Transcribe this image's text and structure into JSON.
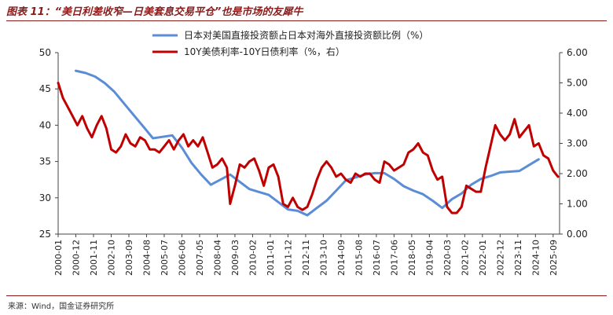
{
  "figure_title": "图表 11：“美日利差收窄—日美套息交易平仓”也是市场的友犀牛",
  "source": "来源：Wind，国金证券研究所",
  "chart_data": {
    "type": "line",
    "title": "",
    "series": [
      {
        "name": "日本对美国直接投资额占日本对海外直接投资额比例（%）",
        "axis": "left",
        "color": "#5B8DD6",
        "points": [
          [
            "2000-12",
            47.5
          ],
          [
            "2001-06",
            47.2
          ],
          [
            "2001-12",
            46.7
          ],
          [
            "2002-06",
            45.8
          ],
          [
            "2002-12",
            44.6
          ],
          [
            "2003-06",
            43.0
          ],
          [
            "2003-12",
            41.4
          ],
          [
            "2004-06",
            39.8
          ],
          [
            "2004-12",
            38.2
          ],
          [
            "2005-06",
            38.4
          ],
          [
            "2005-12",
            38.6
          ],
          [
            "2006-06",
            36.9
          ],
          [
            "2006-12",
            34.8
          ],
          [
            "2007-06",
            33.2
          ],
          [
            "2007-12",
            31.8
          ],
          [
            "2008-06",
            32.5
          ],
          [
            "2008-12",
            33.2
          ],
          [
            "2009-06",
            32.2
          ],
          [
            "2009-12",
            31.2
          ],
          [
            "2010-06",
            30.8
          ],
          [
            "2010-12",
            30.4
          ],
          [
            "2011-06",
            29.4
          ],
          [
            "2011-12",
            28.4
          ],
          [
            "2012-06",
            28.2
          ],
          [
            "2012-12",
            27.6
          ],
          [
            "2013-06",
            28.6
          ],
          [
            "2013-12",
            29.6
          ],
          [
            "2014-06",
            31.0
          ],
          [
            "2014-12",
            32.4
          ],
          [
            "2015-06",
            32.8
          ],
          [
            "2015-12",
            33.2
          ],
          [
            "2016-06",
            33.4
          ],
          [
            "2016-12",
            33.4
          ],
          [
            "2017-06",
            32.6
          ],
          [
            "2017-12",
            31.6
          ],
          [
            "2018-06",
            31.0
          ],
          [
            "2018-12",
            30.5
          ],
          [
            "2019-06",
            29.6
          ],
          [
            "2019-12",
            28.6
          ],
          [
            "2020-06",
            29.8
          ],
          [
            "2020-12",
            30.6
          ],
          [
            "2021-06",
            31.8
          ],
          [
            "2021-12",
            32.6
          ],
          [
            "2022-06",
            33.0
          ],
          [
            "2022-12",
            33.5
          ],
          [
            "2023-06",
            33.6
          ],
          [
            "2023-12",
            33.7
          ],
          [
            "2024-06",
            34.5
          ],
          [
            "2024-12",
            35.3
          ]
        ]
      },
      {
        "name": "10Y美债利率-10Y日债利率（%，右）",
        "axis": "right",
        "color": "#C00000",
        "points": [
          [
            "2000-01",
            5.0
          ],
          [
            "2000-04",
            4.5
          ],
          [
            "2000-07",
            4.2
          ],
          [
            "2000-10",
            3.9
          ],
          [
            "2001-01",
            3.6
          ],
          [
            "2001-04",
            3.9
          ],
          [
            "2001-07",
            3.5
          ],
          [
            "2001-10",
            3.2
          ],
          [
            "2002-01",
            3.6
          ],
          [
            "2002-04",
            3.9
          ],
          [
            "2002-07",
            3.5
          ],
          [
            "2002-10",
            2.8
          ],
          [
            "2003-01",
            2.7
          ],
          [
            "2003-04",
            2.9
          ],
          [
            "2003-07",
            3.3
          ],
          [
            "2003-10",
            3.0
          ],
          [
            "2004-01",
            2.9
          ],
          [
            "2004-04",
            3.2
          ],
          [
            "2004-07",
            3.1
          ],
          [
            "2004-10",
            2.8
          ],
          [
            "2005-01",
            2.8
          ],
          [
            "2005-04",
            2.7
          ],
          [
            "2005-07",
            2.9
          ],
          [
            "2005-10",
            3.1
          ],
          [
            "2006-01",
            2.8
          ],
          [
            "2006-04",
            3.1
          ],
          [
            "2006-07",
            3.3
          ],
          [
            "2006-10",
            2.9
          ],
          [
            "2007-01",
            3.1
          ],
          [
            "2007-04",
            2.9
          ],
          [
            "2007-07",
            3.2
          ],
          [
            "2007-10",
            2.7
          ],
          [
            "2008-01",
            2.2
          ],
          [
            "2008-04",
            2.3
          ],
          [
            "2008-07",
            2.5
          ],
          [
            "2008-10",
            2.2
          ],
          [
            "2008-12",
            1.0
          ],
          [
            "2009-03",
            1.6
          ],
          [
            "2009-06",
            2.3
          ],
          [
            "2009-09",
            2.2
          ],
          [
            "2009-12",
            2.4
          ],
          [
            "2010-03",
            2.5
          ],
          [
            "2010-06",
            2.1
          ],
          [
            "2010-09",
            1.6
          ],
          [
            "2010-12",
            2.2
          ],
          [
            "2011-03",
            2.3
          ],
          [
            "2011-06",
            1.9
          ],
          [
            "2011-09",
            1.0
          ],
          [
            "2011-12",
            0.9
          ],
          [
            "2012-03",
            1.2
          ],
          [
            "2012-06",
            0.9
          ],
          [
            "2012-09",
            0.8
          ],
          [
            "2012-12",
            0.9
          ],
          [
            "2013-03",
            1.3
          ],
          [
            "2013-06",
            1.8
          ],
          [
            "2013-09",
            2.2
          ],
          [
            "2013-12",
            2.4
          ],
          [
            "2014-03",
            2.2
          ],
          [
            "2014-06",
            1.9
          ],
          [
            "2014-09",
            2.0
          ],
          [
            "2014-12",
            1.8
          ],
          [
            "2015-03",
            1.7
          ],
          [
            "2015-06",
            2.0
          ],
          [
            "2015-09",
            1.9
          ],
          [
            "2015-12",
            2.0
          ],
          [
            "2016-03",
            2.0
          ],
          [
            "2016-06",
            1.8
          ],
          [
            "2016-09",
            1.7
          ],
          [
            "2016-12",
            2.4
          ],
          [
            "2017-03",
            2.3
          ],
          [
            "2017-06",
            2.1
          ],
          [
            "2017-09",
            2.2
          ],
          [
            "2017-12",
            2.3
          ],
          [
            "2018-03",
            2.7
          ],
          [
            "2018-06",
            2.8
          ],
          [
            "2018-09",
            3.0
          ],
          [
            "2018-12",
            2.7
          ],
          [
            "2019-03",
            2.6
          ],
          [
            "2019-06",
            2.1
          ],
          [
            "2019-09",
            1.8
          ],
          [
            "2019-12",
            1.9
          ],
          [
            "2020-03",
            0.9
          ],
          [
            "2020-06",
            0.7
          ],
          [
            "2020-09",
            0.7
          ],
          [
            "2020-12",
            0.9
          ],
          [
            "2021-03",
            1.6
          ],
          [
            "2021-06",
            1.5
          ],
          [
            "2021-09",
            1.4
          ],
          [
            "2021-12",
            1.4
          ],
          [
            "2022-03",
            2.2
          ],
          [
            "2022-06",
            2.9
          ],
          [
            "2022-09",
            3.6
          ],
          [
            "2022-12",
            3.3
          ],
          [
            "2023-03",
            3.1
          ],
          [
            "2023-06",
            3.3
          ],
          [
            "2023-09",
            3.8
          ],
          [
            "2023-12",
            3.2
          ],
          [
            "2024-03",
            3.4
          ],
          [
            "2024-06",
            3.6
          ],
          [
            "2024-09",
            2.9
          ],
          [
            "2024-12",
            3.0
          ],
          [
            "2025-03",
            2.6
          ],
          [
            "2025-06",
            2.5
          ],
          [
            "2025-09",
            2.1
          ],
          [
            "2025-12",
            1.9
          ]
        ]
      }
    ],
    "x_tick_labels": [
      "2000-01",
      "2000-12",
      "2001-11",
      "2002-10",
      "2003-09",
      "2004-08",
      "2005-07",
      "2006-06",
      "2007-05",
      "2008-04",
      "2009-03",
      "2010-02",
      "2011-01",
      "2011-12",
      "2012-11",
      "2013-10",
      "2014-09",
      "2015-08",
      "2016-07",
      "2017-06",
      "2018-05",
      "2019-04",
      "2020-03",
      "2021-02",
      "2022-01",
      "2022-12",
      "2023-11",
      "2024-10",
      "2025-09"
    ],
    "y_left": {
      "min": 25,
      "max": 50,
      "ticks": [
        "25",
        "30",
        "35",
        "40",
        "45",
        "50"
      ]
    },
    "y_right": {
      "min": 0,
      "max": 6,
      "ticks": [
        "0.00",
        "1.00",
        "2.00",
        "3.00",
        "4.00",
        "5.00",
        "6.00"
      ]
    },
    "x_range": [
      "2000-01",
      "2026-01"
    ],
    "legend_position": "top-center",
    "grid": false
  }
}
